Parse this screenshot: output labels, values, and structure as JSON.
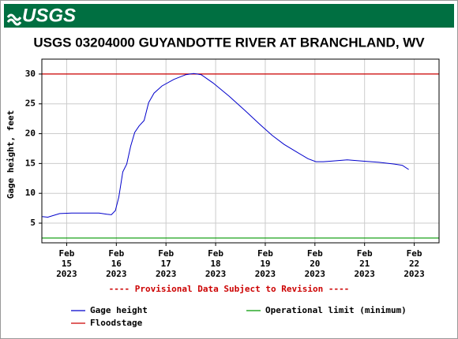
{
  "header": {
    "logo": "USGS"
  },
  "chart_data": {
    "type": "line",
    "title": "USGS 03204000 GUYANDOTTE RIVER AT BRANCHLAND, WV",
    "ylabel": "Gage height, feet",
    "note": "---- Provisional Data Subject to Revision ----",
    "note_color": "#cc0000",
    "xlim": [
      14.5,
      22.5
    ],
    "ylim": [
      1.7,
      32.5
    ],
    "grid": true,
    "xticks": [
      {
        "value": 15,
        "label": [
          "Feb",
          "15",
          "2023"
        ]
      },
      {
        "value": 16,
        "label": [
          "Feb",
          "16",
          "2023"
        ]
      },
      {
        "value": 17,
        "label": [
          "Feb",
          "17",
          "2023"
        ]
      },
      {
        "value": 18,
        "label": [
          "Feb",
          "18",
          "2023"
        ]
      },
      {
        "value": 19,
        "label": [
          "Feb",
          "19",
          "2023"
        ]
      },
      {
        "value": 20,
        "label": [
          "Feb",
          "20",
          "2023"
        ]
      },
      {
        "value": 21,
        "label": [
          "Feb",
          "21",
          "2023"
        ]
      },
      {
        "value": 22,
        "label": [
          "Feb",
          "22",
          "2023"
        ]
      }
    ],
    "yticks": [
      5,
      10,
      15,
      20,
      25,
      30
    ],
    "series": [
      {
        "name": "Gage height",
        "color": "#0000cc",
        "x": [
          14.51,
          14.62,
          14.86,
          15.1,
          15.65,
          15.81,
          15.9,
          15.98,
          16.05,
          16.13,
          16.21,
          16.29,
          16.37,
          16.46,
          16.56,
          16.65,
          16.76,
          16.92,
          17.16,
          17.4,
          17.56,
          17.71,
          17.95,
          18.27,
          18.59,
          18.9,
          19.14,
          19.38,
          19.62,
          19.86,
          20.02,
          20.17,
          20.33,
          20.65,
          20.97,
          21.29,
          21.6,
          21.76,
          21.89
        ],
        "values": [
          6.1,
          6.0,
          6.6,
          6.7,
          6.7,
          6.5,
          6.4,
          7.1,
          9.4,
          13.6,
          14.9,
          17.9,
          20.2,
          21.3,
          22.2,
          25.2,
          26.8,
          28.0,
          29.1,
          29.9,
          30.1,
          29.9,
          28.5,
          26.3,
          23.9,
          21.5,
          19.7,
          18.2,
          17.0,
          15.8,
          15.3,
          15.3,
          15.4,
          15.6,
          15.4,
          15.2,
          14.9,
          14.7,
          14.0
        ]
      }
    ],
    "reference_lines": [
      {
        "name": "Operational limit (minimum)",
        "color": "#009900",
        "value": 2.5
      },
      {
        "name": "Floodstage",
        "color": "#cc0000",
        "value": 30
      }
    ]
  }
}
